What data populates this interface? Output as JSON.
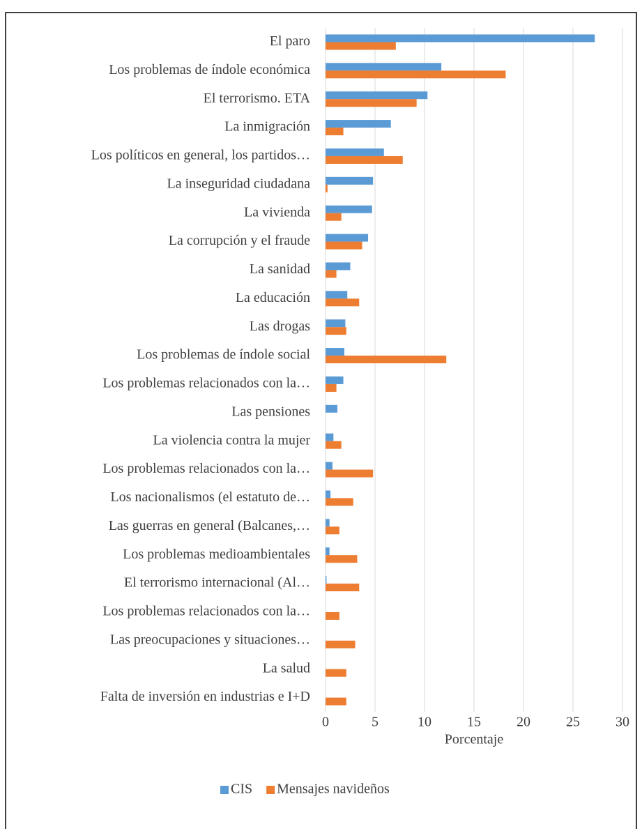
{
  "chart_data": {
    "type": "bar",
    "orientation": "horizontal",
    "categories": [
      "El paro",
      "Los problemas de índole económica",
      "El terrorismo. ETA",
      "La inmigración",
      "Los políticos en general, los partidos…",
      "La inseguridad ciudadana",
      "La vivienda",
      "La corrupción y el fraude",
      "La sanidad",
      "La educación",
      "Las drogas",
      "Los problemas de índole social",
      "Los problemas relacionados con la…",
      "Las pensiones",
      "La violencia contra la mujer",
      "Los problemas relacionados con la…",
      "Los nacionalismos (el estatuto de…",
      "Las guerras en general (Balcanes,…",
      "Los problemas medioambientales",
      "El terrorismo internacional (Al…",
      "Los problemas relacionados con la…",
      "Las preocupaciones y situaciones…",
      "La salud",
      "Falta de inversión en industrias e I+D"
    ],
    "series": [
      {
        "name": "CIS",
        "color": "#5b9bd5",
        "values": [
          27.2,
          11.7,
          10.3,
          6.6,
          5.9,
          4.8,
          4.7,
          4.3,
          2.5,
          2.2,
          2.0,
          1.9,
          1.8,
          1.2,
          0.8,
          0.7,
          0.5,
          0.4,
          0.4,
          0.1,
          0,
          0,
          0,
          0
        ]
      },
      {
        "name": "Mensajes navideños",
        "color": "#ed7d31",
        "values": [
          7.1,
          18.2,
          9.2,
          1.8,
          7.8,
          0.2,
          1.6,
          3.7,
          1.1,
          3.4,
          2.1,
          12.2,
          1.1,
          0,
          1.6,
          4.8,
          2.8,
          1.4,
          3.2,
          3.4,
          1.4,
          3.0,
          2.1,
          2.1
        ]
      }
    ],
    "xlabel": "Porcentaje",
    "xlim": [
      0,
      30
    ],
    "xticks": [
      0,
      5,
      10,
      15,
      20,
      25,
      30
    ],
    "grid": true,
    "legend": "bottom"
  }
}
